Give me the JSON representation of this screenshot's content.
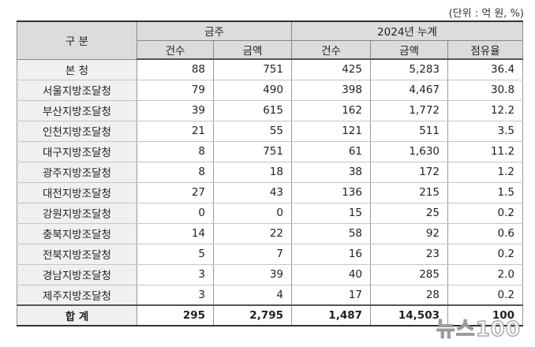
{
  "unit_note": "(단위 : 억 원, %)",
  "header": {
    "category": "구 분",
    "group_month": "금주",
    "group_year": "2024년 누계",
    "count": "건수",
    "amount": "금액",
    "share": "점유율"
  },
  "rows": [
    {
      "name": "본   청",
      "w_count": "88",
      "w_amount": "751",
      "y_count": "425",
      "y_amount": "5,283",
      "share": "36.4"
    },
    {
      "name": "서울지방조달청",
      "w_count": "79",
      "w_amount": "490",
      "y_count": "398",
      "y_amount": "4,467",
      "share": "30.8"
    },
    {
      "name": "부산지방조달청",
      "w_count": "39",
      "w_amount": "615",
      "y_count": "162",
      "y_amount": "1,772",
      "share": "12.2"
    },
    {
      "name": "인천지방조달청",
      "w_count": "21",
      "w_amount": "55",
      "y_count": "121",
      "y_amount": "511",
      "share": "3.5"
    },
    {
      "name": "대구지방조달청",
      "w_count": "8",
      "w_amount": "751",
      "y_count": "61",
      "y_amount": "1,630",
      "share": "11.2"
    },
    {
      "name": "광주지방조달청",
      "w_count": "8",
      "w_amount": "18",
      "y_count": "38",
      "y_amount": "172",
      "share": "1.2"
    },
    {
      "name": "대전지방조달청",
      "w_count": "27",
      "w_amount": "43",
      "y_count": "136",
      "y_amount": "215",
      "share": "1.5"
    },
    {
      "name": "강원지방조달청",
      "w_count": "0",
      "w_amount": "0",
      "y_count": "15",
      "y_amount": "25",
      "share": "0.2"
    },
    {
      "name": "충북지방조달청",
      "w_count": "14",
      "w_amount": "22",
      "y_count": "58",
      "y_amount": "92",
      "share": "0.6"
    },
    {
      "name": "전북지방조달청",
      "w_count": "5",
      "w_amount": "7",
      "y_count": "16",
      "y_amount": "23",
      "share": "0.2"
    },
    {
      "name": "경남지방조달청",
      "w_count": "3",
      "w_amount": "39",
      "y_count": "40",
      "y_amount": "285",
      "share": "2.0"
    },
    {
      "name": "제주지방조달청",
      "w_count": "3",
      "w_amount": "4",
      "y_count": "17",
      "y_amount": "28",
      "share": "0.2"
    }
  ],
  "total": {
    "name": "합   계",
    "w_count": "295",
    "w_amount": "2,795",
    "y_count": "1,487",
    "y_amount": "14,503",
    "share": "100"
  },
  "watermark": "뉴스100"
}
